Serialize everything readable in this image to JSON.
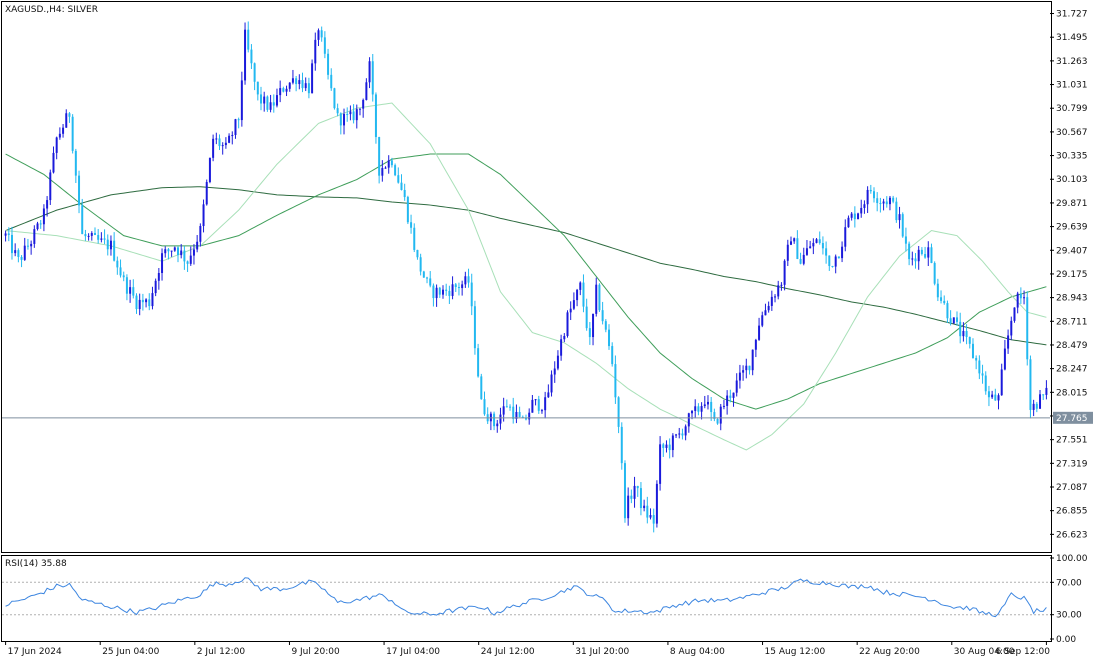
{
  "window": {
    "title": "XAGUSD.,H4:  SILVER",
    "indicator_title": "RSI(14) 35.88"
  },
  "colors": {
    "bull": "#1a1adb",
    "bear": "#22b8f0",
    "ma_fast": "#a8e0b8",
    "ma_mid": "#3f9e5a",
    "ma_slow": "#2e6b40",
    "rsi": "#3d86e0",
    "price_line": "#7f8f9f",
    "axis": "#000000"
  },
  "chart_data": [
    {
      "type": "candlestick",
      "title": "XAGUSD.,H4:  SILVER",
      "ylim": [
        26.45,
        31.84
      ],
      "y_ticks": [
        "31.727",
        "31.495",
        "31.263",
        "31.031",
        "30.799",
        "30.567",
        "30.335",
        "30.103",
        "29.871",
        "29.639",
        "29.407",
        "29.175",
        "28.943",
        "28.711",
        "28.479",
        "28.247",
        "28.015",
        "27.783",
        "27.551",
        "27.319",
        "27.087",
        "26.855",
        "26.623"
      ],
      "x_ticks": [
        "17 Jun 2024",
        "25 Jun 04:00",
        "2 Jul 12:00",
        "9 Jul 20:00",
        "17 Jul 04:00",
        "24 Jul 12:00",
        "31 Jul 20:00",
        "8 Aug 04:00",
        "15 Aug 12:00",
        "22 Aug 20:00",
        "30 Aug 04:00",
        "6 Sep 12:00"
      ],
      "current_price": "27.765",
      "close_path": [
        [
          0,
          29.55
        ],
        [
          4,
          29.3
        ],
        [
          8,
          29.5
        ],
        [
          12,
          29.75
        ],
        [
          16,
          30.5
        ],
        [
          20,
          30.75
        ],
        [
          24,
          29.55
        ],
        [
          28,
          29.5
        ],
        [
          33,
          29.45
        ],
        [
          37,
          29.1
        ],
        [
          41,
          28.9
        ],
        [
          45,
          28.9
        ],
        [
          49,
          29.35
        ],
        [
          53,
          29.45
        ],
        [
          57,
          29.3
        ],
        [
          61,
          29.6
        ],
        [
          65,
          30.5
        ],
        [
          69,
          30.4
        ],
        [
          73,
          30.7
        ],
        [
          75,
          31.5
        ],
        [
          79,
          30.9
        ],
        [
          83,
          30.8
        ],
        [
          87,
          31.0
        ],
        [
          91,
          31.1
        ],
        [
          95,
          31.0
        ],
        [
          98,
          31.6
        ],
        [
          101,
          31.1
        ],
        [
          104,
          30.7
        ],
        [
          108,
          30.7
        ],
        [
          111,
          30.8
        ],
        [
          114,
          31.2
        ],
        [
          117,
          30.2
        ],
        [
          121,
          30.3
        ],
        [
          125,
          29.9
        ],
        [
          129,
          29.3
        ],
        [
          133,
          29.0
        ],
        [
          137,
          29.0
        ],
        [
          141,
          29.05
        ],
        [
          145,
          29.1
        ],
        [
          149,
          27.9
        ],
        [
          153,
          27.7
        ],
        [
          157,
          27.9
        ],
        [
          162,
          27.7
        ],
        [
          165,
          27.9
        ],
        [
          169,
          27.9
        ],
        [
          173,
          28.4
        ],
        [
          176,
          28.75
        ],
        [
          180,
          29.05
        ],
        [
          183,
          28.5
        ],
        [
          185,
          29.0
        ],
        [
          188,
          28.6
        ],
        [
          190,
          28.3
        ],
        [
          192,
          27.7
        ],
        [
          194,
          26.85
        ],
        [
          197,
          27.1
        ],
        [
          200,
          26.85
        ],
        [
          203,
          26.75
        ],
        [
          205,
          27.45
        ],
        [
          208,
          27.5
        ],
        [
          211,
          27.6
        ],
        [
          214,
          27.75
        ],
        [
          217,
          27.85
        ],
        [
          219,
          27.95
        ],
        [
          222,
          27.7
        ],
        [
          225,
          27.9
        ],
        [
          229,
          28.1
        ],
        [
          233,
          28.3
        ],
        [
          236,
          28.7
        ],
        [
          239,
          28.9
        ],
        [
          243,
          29.1
        ],
        [
          246,
          29.55
        ],
        [
          249,
          29.3
        ],
        [
          252,
          29.45
        ],
        [
          255,
          29.5
        ],
        [
          258,
          29.25
        ],
        [
          261,
          29.4
        ],
        [
          264,
          29.7
        ],
        [
          267,
          29.8
        ],
        [
          271,
          30.0
        ],
        [
          274,
          29.9
        ],
        [
          277,
          29.9
        ],
        [
          280,
          29.7
        ],
        [
          283,
          29.3
        ],
        [
          286,
          29.4
        ],
        [
          289,
          29.4
        ],
        [
          292,
          29.0
        ],
        [
          295,
          28.8
        ],
        [
          299,
          28.6
        ],
        [
          302,
          28.45
        ],
        [
          305,
          28.25
        ],
        [
          308,
          27.95
        ],
        [
          311,
          27.95
        ],
        [
          313,
          28.4
        ],
        [
          316,
          28.9
        ],
        [
          319,
          28.95
        ],
        [
          321,
          27.85
        ],
        [
          324,
          27.95
        ],
        [
          326,
          28.0
        ]
      ],
      "ma_fast_path": [
        [
          0,
          29.6
        ],
        [
          16,
          29.55
        ],
        [
          33,
          29.45
        ],
        [
          49,
          29.3
        ],
        [
          61,
          29.45
        ],
        [
          73,
          29.8
        ],
        [
          85,
          30.25
        ],
        [
          98,
          30.65
        ],
        [
          110,
          30.8
        ],
        [
          121,
          30.85
        ],
        [
          133,
          30.45
        ],
        [
          145,
          29.8
        ],
        [
          155,
          29.0
        ],
        [
          165,
          28.6
        ],
        [
          175,
          28.5
        ],
        [
          185,
          28.3
        ],
        [
          195,
          28.05
        ],
        [
          205,
          27.85
        ],
        [
          215,
          27.7
        ],
        [
          225,
          27.55
        ],
        [
          232,
          27.45
        ],
        [
          240,
          27.6
        ],
        [
          250,
          27.9
        ],
        [
          260,
          28.4
        ],
        [
          270,
          28.95
        ],
        [
          280,
          29.35
        ],
        [
          290,
          29.6
        ],
        [
          298,
          29.55
        ],
        [
          306,
          29.3
        ],
        [
          314,
          29.0
        ],
        [
          320,
          28.8
        ],
        [
          326,
          28.75
        ]
      ],
      "ma_mid_path": [
        [
          0,
          30.35
        ],
        [
          12,
          30.15
        ],
        [
          24,
          29.85
        ],
        [
          37,
          29.55
        ],
        [
          49,
          29.45
        ],
        [
          61,
          29.45
        ],
        [
          73,
          29.55
        ],
        [
          85,
          29.75
        ],
        [
          98,
          29.95
        ],
        [
          110,
          30.1
        ],
        [
          121,
          30.3
        ],
        [
          133,
          30.35
        ],
        [
          145,
          30.35
        ],
        [
          155,
          30.15
        ],
        [
          165,
          29.85
        ],
        [
          175,
          29.55
        ],
        [
          185,
          29.15
        ],
        [
          195,
          28.75
        ],
        [
          205,
          28.4
        ],
        [
          215,
          28.15
        ],
        [
          225,
          27.95
        ],
        [
          235,
          27.85
        ],
        [
          245,
          27.95
        ],
        [
          255,
          28.1
        ],
        [
          265,
          28.2
        ],
        [
          275,
          28.3
        ],
        [
          285,
          28.4
        ],
        [
          295,
          28.55
        ],
        [
          305,
          28.8
        ],
        [
          315,
          28.95
        ],
        [
          326,
          29.05
        ]
      ],
      "ma_slow_path": [
        [
          0,
          29.6
        ],
        [
          16,
          29.8
        ],
        [
          33,
          29.95
        ],
        [
          49,
          30.02
        ],
        [
          61,
          30.03
        ],
        [
          73,
          30.0
        ],
        [
          85,
          29.95
        ],
        [
          98,
          29.93
        ],
        [
          110,
          29.92
        ],
        [
          121,
          29.88
        ],
        [
          133,
          29.85
        ],
        [
          145,
          29.8
        ],
        [
          155,
          29.72
        ],
        [
          165,
          29.65
        ],
        [
          175,
          29.58
        ],
        [
          185,
          29.48
        ],
        [
          195,
          29.38
        ],
        [
          205,
          29.28
        ],
        [
          215,
          29.22
        ],
        [
          225,
          29.15
        ],
        [
          235,
          29.1
        ],
        [
          245,
          29.03
        ],
        [
          255,
          28.97
        ],
        [
          265,
          28.9
        ],
        [
          275,
          28.85
        ],
        [
          285,
          28.78
        ],
        [
          295,
          28.7
        ],
        [
          305,
          28.62
        ],
        [
          315,
          28.53
        ],
        [
          326,
          28.48
        ]
      ]
    },
    {
      "type": "line",
      "title": "RSI(14) 35.88",
      "ylim": [
        0,
        100
      ],
      "y_ticks": [
        "100.00",
        "70.00",
        "30.00",
        "0.00"
      ],
      "levels": [
        70,
        30
      ],
      "value_path": [
        [
          0,
          42
        ],
        [
          8,
          52
        ],
        [
          16,
          65
        ],
        [
          20,
          67
        ],
        [
          24,
          48
        ],
        [
          33,
          40
        ],
        [
          41,
          33
        ],
        [
          45,
          36
        ],
        [
          53,
          46
        ],
        [
          61,
          55
        ],
        [
          65,
          68
        ],
        [
          70,
          68
        ],
        [
          75,
          75
        ],
        [
          80,
          62
        ],
        [
          87,
          62
        ],
        [
          95,
          70
        ],
        [
          98,
          67
        ],
        [
          104,
          45
        ],
        [
          110,
          48
        ],
        [
          117,
          54
        ],
        [
          121,
          48
        ],
        [
          125,
          33
        ],
        [
          133,
          30
        ],
        [
          141,
          36
        ],
        [
          149,
          40
        ],
        [
          153,
          32
        ],
        [
          162,
          44
        ],
        [
          168,
          50
        ],
        [
          174,
          58
        ],
        [
          178,
          65
        ],
        [
          183,
          55
        ],
        [
          188,
          48
        ],
        [
          191,
          33
        ],
        [
          195,
          35
        ],
        [
          203,
          33
        ],
        [
          210,
          42
        ],
        [
          218,
          48
        ],
        [
          225,
          47
        ],
        [
          232,
          52
        ],
        [
          238,
          58
        ],
        [
          243,
          62
        ],
        [
          249,
          72
        ],
        [
          255,
          70
        ],
        [
          260,
          68
        ],
        [
          265,
          64
        ],
        [
          270,
          66
        ],
        [
          275,
          58
        ],
        [
          281,
          55
        ],
        [
          287,
          52
        ],
        [
          291,
          48
        ],
        [
          296,
          40
        ],
        [
          302,
          38
        ],
        [
          306,
          32
        ],
        [
          311,
          30
        ],
        [
          315,
          55
        ],
        [
          319,
          50
        ],
        [
          322,
          34
        ],
        [
          326,
          36
        ]
      ]
    }
  ]
}
